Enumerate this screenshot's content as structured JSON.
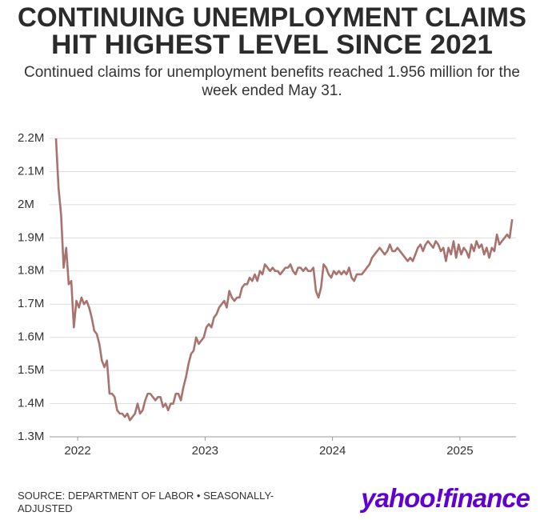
{
  "chart_data": {
    "type": "line",
    "title": [
      "CONTINUING UNEMPLOYMENT CLAIMS",
      "HIT HIGHEST LEVEL SINCE 2021"
    ],
    "subtitle": "Continued claims for unemployment benefits reached 1.956 million for the week ended May 31.",
    "source": "SOURCE: DEPARTMENT OF LABOR • SEASONALLY-ADJUSTED",
    "logo": "yahoo!finance",
    "color": "#a8736f",
    "grid": true,
    "xlim": [
      2021.83,
      2025.44
    ],
    "xticks": [
      2022,
      2023,
      2024,
      2025
    ],
    "ylim": [
      1.3,
      2.2
    ],
    "yticks": [
      {
        "value": 1.3,
        "label": "1.3M"
      },
      {
        "value": 1.4,
        "label": "1.4M"
      },
      {
        "value": 1.5,
        "label": "1.5M"
      },
      {
        "value": 1.6,
        "label": "1.6M"
      },
      {
        "value": 1.7,
        "label": "1.7M"
      },
      {
        "value": 1.8,
        "label": "1.8M"
      },
      {
        "value": 1.9,
        "label": "1.9M"
      },
      {
        "value": 2,
        "label": "2M"
      },
      {
        "value": 2.1,
        "label": "2.1M"
      },
      {
        "value": 2.2,
        "label": "2.2M"
      }
    ],
    "x": [
      2021.83,
      2021.85,
      2021.87,
      2021.89,
      2021.91,
      2021.93,
      2021.95,
      2021.97,
      2021.99,
      2022.01,
      2022.03,
      2022.05,
      2022.07,
      2022.09,
      2022.11,
      2022.13,
      2022.15,
      2022.17,
      2022.19,
      2022.21,
      2022.23,
      2022.25,
      2022.27,
      2022.29,
      2022.31,
      2022.33,
      2022.35,
      2022.37,
      2022.39,
      2022.41,
      2022.43,
      2022.45,
      2022.47,
      2022.49,
      2022.51,
      2022.53,
      2022.55,
      2022.57,
      2022.59,
      2022.61,
      2022.63,
      2022.65,
      2022.67,
      2022.69,
      2022.71,
      2022.73,
      2022.75,
      2022.77,
      2022.79,
      2022.81,
      2022.83,
      2022.85,
      2022.87,
      2022.89,
      2022.91,
      2022.93,
      2022.95,
      2022.97,
      2022.99,
      2023.01,
      2023.03,
      2023.05,
      2023.07,
      2023.09,
      2023.11,
      2023.13,
      2023.15,
      2023.17,
      2023.19,
      2023.21,
      2023.23,
      2023.25,
      2023.27,
      2023.29,
      2023.31,
      2023.33,
      2023.35,
      2023.37,
      2023.39,
      2023.41,
      2023.43,
      2023.45,
      2023.47,
      2023.49,
      2023.51,
      2023.53,
      2023.55,
      2023.57,
      2023.59,
      2023.61,
      2023.63,
      2023.65,
      2023.67,
      2023.69,
      2023.71,
      2023.73,
      2023.75,
      2023.77,
      2023.79,
      2023.81,
      2023.83,
      2023.85,
      2023.87,
      2023.89,
      2023.91,
      2023.93,
      2023.95,
      2023.97,
      2023.99,
      2024.01,
      2024.03,
      2024.05,
      2024.07,
      2024.09,
      2024.11,
      2024.13,
      2024.15,
      2024.17,
      2024.19,
      2024.21,
      2024.23,
      2024.25,
      2024.27,
      2024.29,
      2024.31,
      2024.33,
      2024.35,
      2024.37,
      2024.39,
      2024.41,
      2024.43,
      2024.45,
      2024.47,
      2024.49,
      2024.51,
      2024.53,
      2024.55,
      2024.57,
      2024.59,
      2024.61,
      2024.63,
      2024.65,
      2024.67,
      2024.69,
      2024.71,
      2024.73,
      2024.75,
      2024.77,
      2024.79,
      2024.81,
      2024.83,
      2024.85,
      2024.87,
      2024.89,
      2024.91,
      2024.93,
      2024.95,
      2024.97,
      2024.99,
      2025.01,
      2025.03,
      2025.05,
      2025.07,
      2025.09,
      2025.11,
      2025.13,
      2025.15,
      2025.17,
      2025.19,
      2025.21,
      2025.23,
      2025.25,
      2025.27,
      2025.29,
      2025.31,
      2025.33,
      2025.35,
      2025.37,
      2025.39,
      2025.41
    ],
    "values": [
      2.2,
      2.05,
      1.97,
      1.81,
      1.87,
      1.76,
      1.77,
      1.63,
      1.71,
      1.69,
      1.72,
      1.7,
      1.71,
      1.69,
      1.66,
      1.62,
      1.61,
      1.58,
      1.53,
      1.51,
      1.53,
      1.43,
      1.43,
      1.42,
      1.38,
      1.37,
      1.37,
      1.36,
      1.37,
      1.35,
      1.36,
      1.37,
      1.4,
      1.37,
      1.38,
      1.41,
      1.43,
      1.43,
      1.42,
      1.41,
      1.42,
      1.42,
      1.39,
      1.4,
      1.38,
      1.4,
      1.4,
      1.43,
      1.43,
      1.41,
      1.45,
      1.48,
      1.52,
      1.55,
      1.56,
      1.6,
      1.58,
      1.59,
      1.6,
      1.63,
      1.64,
      1.63,
      1.66,
      1.67,
      1.69,
      1.7,
      1.71,
      1.69,
      1.74,
      1.72,
      1.71,
      1.72,
      1.72,
      1.75,
      1.76,
      1.76,
      1.78,
      1.77,
      1.79,
      1.77,
      1.8,
      1.79,
      1.82,
      1.81,
      1.8,
      1.81,
      1.8,
      1.8,
      1.79,
      1.8,
      1.81,
      1.81,
      1.82,
      1.8,
      1.79,
      1.81,
      1.81,
      1.8,
      1.81,
      1.8,
      1.8,
      1.81,
      1.74,
      1.72,
      1.75,
      1.82,
      1.81,
      1.79,
      1.78,
      1.8,
      1.79,
      1.8,
      1.79,
      1.8,
      1.79,
      1.81,
      1.78,
      1.77,
      1.79,
      1.79,
      1.79,
      1.8,
      1.81,
      1.82,
      1.84,
      1.85,
      1.86,
      1.87,
      1.86,
      1.85,
      1.86,
      1.88,
      1.86,
      1.86,
      1.87,
      1.86,
      1.85,
      1.84,
      1.83,
      1.84,
      1.83,
      1.85,
      1.87,
      1.88,
      1.86,
      1.88,
      1.89,
      1.88,
      1.87,
      1.89,
      1.88,
      1.86,
      1.87,
      1.83,
      1.87,
      1.85,
      1.89,
      1.84,
      1.88,
      1.85,
      1.87,
      1.86,
      1.84,
      1.88,
      1.86,
      1.89,
      1.87,
      1.88,
      1.85,
      1.87,
      1.84,
      1.87,
      1.86,
      1.91,
      1.88,
      1.89,
      1.9,
      1.91,
      1.9,
      1.956
    ]
  }
}
